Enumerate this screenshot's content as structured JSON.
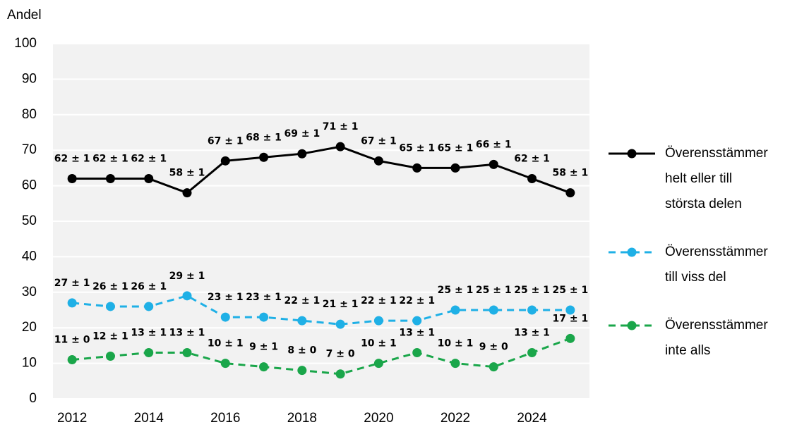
{
  "chart_data": {
    "type": "line",
    "y_label": "Andel",
    "x": [
      2012,
      2013,
      2014,
      2015,
      2016,
      2017,
      2018,
      2019,
      2020,
      2021,
      2022,
      2023,
      2024,
      2025
    ],
    "xlim": [
      2011.5,
      2025.5
    ],
    "xticks": [
      2012,
      2014,
      2016,
      2018,
      2020,
      2022,
      2024
    ],
    "ylim": [
      0,
      100
    ],
    "yticks": [
      0,
      10,
      20,
      30,
      40,
      50,
      60,
      70,
      80,
      90,
      100
    ],
    "grid": true,
    "legend": "right",
    "series": [
      {
        "name": "Överensstämmer helt eller till största delen",
        "color": "#000000",
        "dashed": false,
        "values": [
          62,
          62,
          62,
          58,
          67,
          68,
          69,
          71,
          67,
          65,
          65,
          66,
          62,
          58
        ],
        "value_labels": [
          "62 ± 1",
          "62 ± 1",
          "62 ± 1",
          "58 ± 1",
          "67 ± 1",
          "68 ± 1",
          "69 ± 1",
          "71 ± 1",
          "67 ± 1",
          "65 ± 1",
          "65 ± 1",
          "66 ± 1",
          "62 ± 1",
          "58 ± 1"
        ]
      },
      {
        "name": "Överensstämmer till viss del",
        "color": "#1fb0e6",
        "dashed": true,
        "values": [
          27,
          26,
          26,
          29,
          23,
          23,
          22,
          21,
          22,
          22,
          25,
          25,
          25,
          25
        ],
        "value_labels": [
          "27 ± 1",
          "26 ± 1",
          "26 ± 1",
          "29 ± 1",
          "23 ± 1",
          "23 ± 1",
          "22 ± 1",
          "21 ± 1",
          "22 ± 1",
          "22 ± 1",
          "25 ± 1",
          "25 ± 1",
          "25 ± 1",
          "25 ± 1"
        ]
      },
      {
        "name": "Överensstämmer inte alls",
        "color": "#1aa64a",
        "dashed": true,
        "values": [
          11,
          12,
          13,
          13,
          10,
          9,
          8,
          7,
          10,
          13,
          10,
          9,
          13,
          17
        ],
        "value_labels": [
          "11 ± 0",
          "12 ± 1",
          "13 ± 1",
          "13 ± 1",
          "10 ± 1",
          "9 ± 1",
          "8 ± 0",
          "7 ± 0",
          "10 ± 1",
          "13 ± 1",
          "10 ± 1",
          "9 ± 0",
          "13 ± 1",
          "17 ± 1"
        ]
      }
    ]
  }
}
